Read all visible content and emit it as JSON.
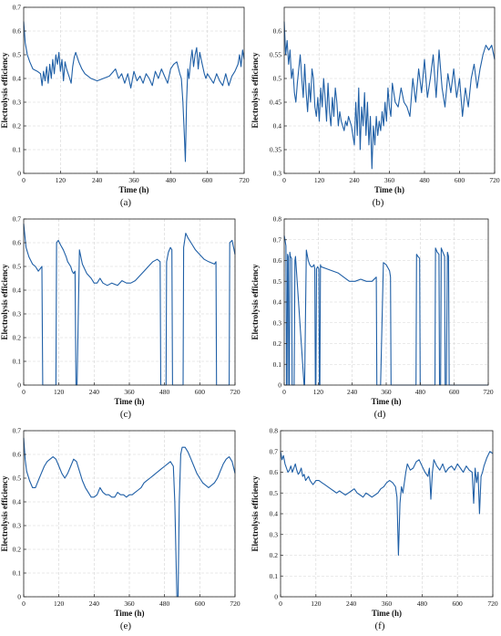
{
  "line_color": "#1f5fa6",
  "grid_color": "#d4d4d4",
  "chart_data": [
    {
      "type": "line",
      "caption": "(a)",
      "xlabel": "Time (h)",
      "ylabel": "Electrolysis efficiency",
      "xlim": [
        0,
        720
      ],
      "ylim": [
        0,
        0.7
      ],
      "xticks": [
        "0",
        "120",
        "240",
        "360",
        "480",
        "600",
        "720"
      ],
      "yticks": [
        "0",
        "0.1",
        "0.2",
        "0.3",
        "0.4",
        "0.5",
        "0.6",
        "0.7"
      ],
      "grid": true,
      "x": [
        0,
        5,
        12,
        20,
        30,
        45,
        55,
        60,
        65,
        70,
        75,
        80,
        85,
        90,
        95,
        100,
        105,
        110,
        115,
        120,
        125,
        130,
        135,
        140,
        148,
        155,
        160,
        165,
        170,
        180,
        190,
        200,
        210,
        220,
        240,
        260,
        280,
        300,
        310,
        320,
        330,
        340,
        350,
        360,
        370,
        380,
        390,
        400,
        410,
        420,
        430,
        440,
        450,
        460,
        470,
        480,
        490,
        500,
        510,
        515,
        520,
        525,
        528,
        532,
        536,
        540,
        545,
        550,
        555,
        560,
        565,
        570,
        575,
        580,
        585,
        590,
        595,
        600,
        610,
        620,
        630,
        640,
        650,
        660,
        670,
        680,
        690,
        700,
        705,
        710,
        715,
        720
      ],
      "y": [
        0.64,
        0.55,
        0.5,
        0.47,
        0.44,
        0.43,
        0.42,
        0.37,
        0.43,
        0.39,
        0.45,
        0.38,
        0.46,
        0.4,
        0.48,
        0.42,
        0.5,
        0.46,
        0.51,
        0.43,
        0.48,
        0.39,
        0.47,
        0.44,
        0.41,
        0.38,
        0.45,
        0.49,
        0.51,
        0.47,
        0.44,
        0.42,
        0.41,
        0.4,
        0.39,
        0.4,
        0.41,
        0.44,
        0.4,
        0.42,
        0.38,
        0.42,
        0.36,
        0.43,
        0.39,
        0.41,
        0.38,
        0.42,
        0.4,
        0.37,
        0.43,
        0.4,
        0.44,
        0.41,
        0.38,
        0.44,
        0.46,
        0.47,
        0.42,
        0.4,
        0.3,
        0.15,
        0.05,
        0.3,
        0.44,
        0.4,
        0.47,
        0.52,
        0.45,
        0.5,
        0.53,
        0.44,
        0.51,
        0.48,
        0.45,
        0.42,
        0.4,
        0.42,
        0.4,
        0.38,
        0.42,
        0.39,
        0.37,
        0.42,
        0.37,
        0.41,
        0.43,
        0.46,
        0.5,
        0.45,
        0.52,
        0.48
      ]
    },
    {
      "type": "line",
      "caption": "(b)",
      "xlabel": "Time (h)",
      "ylabel": "Electrolysis efficiency",
      "xlim": [
        0,
        720
      ],
      "ylim": [
        0.3,
        0.65
      ],
      "xticks": [
        "0",
        "120",
        "240",
        "360",
        "480",
        "600",
        "720"
      ],
      "yticks": [
        "0.3",
        "0.35",
        "0.4",
        "0.45",
        "0.5",
        "0.55",
        "0.6"
      ],
      "grid": true,
      "x": [
        0,
        5,
        10,
        15,
        20,
        25,
        30,
        35,
        40,
        45,
        50,
        55,
        60,
        65,
        70,
        75,
        80,
        85,
        90,
        95,
        100,
        105,
        110,
        115,
        120,
        125,
        130,
        135,
        140,
        145,
        150,
        155,
        160,
        165,
        170,
        175,
        180,
        185,
        190,
        195,
        200,
        205,
        210,
        215,
        220,
        225,
        230,
        235,
        240,
        245,
        250,
        255,
        260,
        265,
        270,
        275,
        280,
        285,
        290,
        295,
        300,
        305,
        310,
        315,
        320,
        325,
        330,
        335,
        340,
        345,
        350,
        355,
        360,
        365,
        370,
        380,
        390,
        400,
        410,
        420,
        430,
        440,
        450,
        460,
        470,
        480,
        490,
        500,
        510,
        520,
        530,
        540,
        550,
        560,
        570,
        580,
        590,
        600,
        610,
        620,
        630,
        640,
        650,
        660,
        670,
        680,
        690,
        700,
        710,
        720
      ],
      "y": [
        0.62,
        0.55,
        0.58,
        0.53,
        0.56,
        0.5,
        0.52,
        0.47,
        0.45,
        0.49,
        0.52,
        0.55,
        0.5,
        0.46,
        0.53,
        0.47,
        0.43,
        0.49,
        0.45,
        0.52,
        0.5,
        0.44,
        0.42,
        0.46,
        0.41,
        0.48,
        0.44,
        0.5,
        0.46,
        0.41,
        0.49,
        0.43,
        0.4,
        0.46,
        0.42,
        0.48,
        0.45,
        0.4,
        0.43,
        0.41,
        0.4,
        0.39,
        0.41,
        0.4,
        0.42,
        0.41,
        0.4,
        0.38,
        0.36,
        0.45,
        0.38,
        0.48,
        0.35,
        0.44,
        0.4,
        0.47,
        0.38,
        0.45,
        0.36,
        0.42,
        0.31,
        0.4,
        0.36,
        0.42,
        0.38,
        0.41,
        0.39,
        0.43,
        0.4,
        0.45,
        0.41,
        0.48,
        0.44,
        0.42,
        0.49,
        0.45,
        0.44,
        0.48,
        0.45,
        0.44,
        0.42,
        0.5,
        0.45,
        0.52,
        0.47,
        0.54,
        0.46,
        0.5,
        0.55,
        0.46,
        0.56,
        0.48,
        0.44,
        0.51,
        0.47,
        0.52,
        0.46,
        0.5,
        0.42,
        0.48,
        0.44,
        0.5,
        0.53,
        0.48,
        0.52,
        0.55,
        0.57,
        0.56,
        0.57,
        0.54
      ]
    },
    {
      "type": "line",
      "caption": "(c)",
      "xlabel": "Time (h)",
      "ylabel": "Electrolysis efficiency",
      "xlim": [
        0,
        720
      ],
      "ylim": [
        0,
        0.7
      ],
      "xticks": [
        "0",
        "120",
        "240",
        "360",
        "480",
        "600",
        "720"
      ],
      "yticks": [
        "0",
        "0.1",
        "0.2",
        "0.3",
        "0.4",
        "0.5",
        "0.6",
        "0.7"
      ],
      "grid": true,
      "x": [
        0,
        8,
        18,
        30,
        40,
        50,
        62,
        65,
        110,
        112,
        118,
        126,
        135,
        145,
        150,
        160,
        165,
        170,
        175,
        178,
        182,
        190,
        200,
        215,
        230,
        240,
        250,
        260,
        270,
        285,
        300,
        320,
        335,
        350,
        365,
        380,
        395,
        410,
        425,
        440,
        455,
        465,
        467,
        485,
        487,
        493,
        500,
        505,
        507,
        543,
        545,
        552,
        560,
        570,
        585,
        600,
        615,
        630,
        650,
        655,
        657,
        700,
        702,
        710,
        715,
        720
      ],
      "y": [
        0.68,
        0.58,
        0.54,
        0.51,
        0.5,
        0.48,
        0.5,
        0.0,
        0.0,
        0.6,
        0.61,
        0.59,
        0.57,
        0.54,
        0.52,
        0.5,
        0.48,
        0.47,
        0.48,
        0.0,
        0.0,
        0.57,
        0.51,
        0.47,
        0.45,
        0.43,
        0.43,
        0.45,
        0.43,
        0.42,
        0.43,
        0.42,
        0.44,
        0.43,
        0.43,
        0.44,
        0.46,
        0.48,
        0.5,
        0.52,
        0.53,
        0.52,
        0.0,
        0.0,
        0.52,
        0.56,
        0.58,
        0.57,
        0.0,
        0.0,
        0.58,
        0.64,
        0.62,
        0.6,
        0.57,
        0.55,
        0.53,
        0.52,
        0.51,
        0.52,
        0.0,
        0.0,
        0.6,
        0.61,
        0.58,
        0.55
      ]
    },
    {
      "type": "line",
      "caption": "(d)",
      "xlabel": "Time (h)",
      "ylabel": "Electrolysis efficiency",
      "xlim": [
        0,
        720
      ],
      "ylim": [
        0,
        0.8
      ],
      "xticks": [
        "0",
        "120",
        "240",
        "360",
        "480",
        "600",
        "720"
      ],
      "yticks": [
        "0",
        "0.1",
        "0.2",
        "0.3",
        "0.4",
        "0.5",
        "0.6",
        "0.7",
        "0.8"
      ],
      "grid": true,
      "x": [
        0,
        3,
        6,
        8,
        10,
        12,
        14,
        16,
        18,
        20,
        22,
        26,
        28,
        35,
        38,
        40,
        70,
        72,
        78,
        85,
        90,
        95,
        100,
        105,
        108,
        110,
        112,
        114,
        118,
        122,
        124,
        126,
        128,
        130,
        150,
        170,
        190,
        210,
        230,
        250,
        270,
        290,
        310,
        325,
        327,
        340,
        350,
        360,
        368,
        372,
        375,
        377,
        465,
        467,
        472,
        478,
        480,
        532,
        534,
        540,
        546,
        548,
        552,
        554,
        560,
        566,
        568,
        572,
        576,
        580,
        582,
        720
      ],
      "y": [
        0.72,
        0.7,
        0.67,
        0.0,
        0.0,
        0.63,
        0.62,
        0.0,
        0.0,
        0.64,
        0.62,
        0.61,
        0.0,
        0.0,
        0.6,
        0.62,
        0.0,
        0.0,
        0.65,
        0.6,
        0.58,
        0.57,
        0.57,
        0.58,
        0.56,
        0.0,
        0.0,
        0.56,
        0.57,
        0.56,
        0.0,
        0.0,
        0.58,
        0.57,
        0.56,
        0.55,
        0.54,
        0.52,
        0.5,
        0.5,
        0.51,
        0.5,
        0.5,
        0.52,
        0.0,
        0.0,
        0.59,
        0.58,
        0.56,
        0.55,
        0.52,
        0.0,
        0.0,
        0.63,
        0.62,
        0.61,
        0.0,
        0.0,
        0.66,
        0.64,
        0.63,
        0.0,
        0.0,
        0.66,
        0.64,
        0.62,
        0.0,
        0.0,
        0.64,
        0.62,
        0.0,
        0.0
      ]
    },
    {
      "type": "line",
      "caption": "(e)",
      "xlabel": "Time (h)",
      "ylabel": "Electrolysis efficiency",
      "xlim": [
        0,
        720
      ],
      "ylim": [
        0,
        0.7
      ],
      "xticks": [
        "0",
        "120",
        "240",
        "360",
        "480",
        "600",
        "720"
      ],
      "yticks": [
        "0",
        "0.1",
        "0.2",
        "0.3",
        "0.4",
        "0.5",
        "0.6",
        "0.7"
      ],
      "grid": true,
      "x": [
        0,
        5,
        10,
        20,
        30,
        40,
        50,
        60,
        70,
        80,
        90,
        100,
        110,
        120,
        130,
        140,
        150,
        160,
        170,
        180,
        190,
        200,
        210,
        220,
        230,
        240,
        250,
        260,
        270,
        280,
        290,
        300,
        310,
        320,
        330,
        340,
        350,
        360,
        370,
        380,
        390,
        400,
        410,
        420,
        430,
        440,
        450,
        460,
        470,
        480,
        490,
        500,
        505,
        510,
        515,
        520,
        522,
        526,
        530,
        535,
        540,
        550,
        560,
        570,
        580,
        590,
        600,
        610,
        620,
        630,
        640,
        650,
        660,
        670,
        680,
        690,
        700,
        710,
        720
      ],
      "y": [
        0.67,
        0.58,
        0.53,
        0.49,
        0.46,
        0.46,
        0.49,
        0.52,
        0.55,
        0.57,
        0.58,
        0.59,
        0.58,
        0.55,
        0.52,
        0.5,
        0.52,
        0.55,
        0.58,
        0.57,
        0.53,
        0.49,
        0.46,
        0.44,
        0.42,
        0.42,
        0.43,
        0.46,
        0.44,
        0.43,
        0.43,
        0.42,
        0.42,
        0.44,
        0.43,
        0.43,
        0.42,
        0.43,
        0.43,
        0.44,
        0.45,
        0.46,
        0.48,
        0.49,
        0.5,
        0.51,
        0.52,
        0.53,
        0.54,
        0.55,
        0.56,
        0.57,
        0.56,
        0.55,
        0.4,
        0.1,
        0.0,
        0.0,
        0.4,
        0.6,
        0.63,
        0.63,
        0.61,
        0.58,
        0.55,
        0.52,
        0.5,
        0.48,
        0.47,
        0.46,
        0.47,
        0.48,
        0.5,
        0.53,
        0.56,
        0.58,
        0.59,
        0.57,
        0.52
      ]
    },
    {
      "type": "line",
      "caption": "(f)",
      "xlabel": "Time (h)",
      "ylabel": "Electrolysis efficiency",
      "xlim": [
        0,
        720
      ],
      "ylim": [
        0,
        0.8
      ],
      "xticks": [
        "0",
        "120",
        "240",
        "360",
        "480",
        "600",
        "720"
      ],
      "yticks": [
        "0",
        "0.1",
        "0.2",
        "0.3",
        "0.4",
        "0.5",
        "0.6",
        "0.7",
        "0.8"
      ],
      "grid": true,
      "x": [
        0,
        5,
        10,
        15,
        20,
        25,
        30,
        35,
        40,
        45,
        50,
        55,
        60,
        65,
        70,
        75,
        80,
        85,
        90,
        95,
        100,
        105,
        110,
        115,
        120,
        130,
        140,
        150,
        160,
        170,
        180,
        190,
        200,
        210,
        220,
        230,
        240,
        250,
        260,
        270,
        280,
        290,
        300,
        310,
        320,
        330,
        340,
        350,
        360,
        370,
        380,
        390,
        395,
        400,
        405,
        410,
        415,
        420,
        425,
        430,
        440,
        450,
        460,
        470,
        480,
        490,
        500,
        505,
        510,
        515,
        520,
        530,
        540,
        550,
        560,
        570,
        580,
        590,
        600,
        610,
        620,
        630,
        640,
        650,
        655,
        660,
        665,
        670,
        675,
        680,
        685,
        690,
        700,
        710,
        720
      ],
      "y": [
        0.7,
        0.66,
        0.68,
        0.64,
        0.62,
        0.6,
        0.61,
        0.63,
        0.6,
        0.62,
        0.64,
        0.61,
        0.59,
        0.6,
        0.62,
        0.58,
        0.59,
        0.56,
        0.57,
        0.58,
        0.56,
        0.55,
        0.54,
        0.55,
        0.56,
        0.56,
        0.55,
        0.54,
        0.53,
        0.52,
        0.51,
        0.5,
        0.51,
        0.5,
        0.49,
        0.5,
        0.51,
        0.52,
        0.5,
        0.49,
        0.48,
        0.5,
        0.49,
        0.48,
        0.49,
        0.5,
        0.52,
        0.53,
        0.55,
        0.56,
        0.55,
        0.53,
        0.48,
        0.2,
        0.45,
        0.53,
        0.5,
        0.55,
        0.6,
        0.64,
        0.61,
        0.62,
        0.65,
        0.66,
        0.63,
        0.6,
        0.58,
        0.62,
        0.47,
        0.6,
        0.66,
        0.63,
        0.61,
        0.64,
        0.6,
        0.62,
        0.63,
        0.61,
        0.64,
        0.62,
        0.6,
        0.63,
        0.61,
        0.6,
        0.45,
        0.62,
        0.55,
        0.6,
        0.4,
        0.58,
        0.6,
        0.63,
        0.67,
        0.7,
        0.69
      ]
    }
  ]
}
